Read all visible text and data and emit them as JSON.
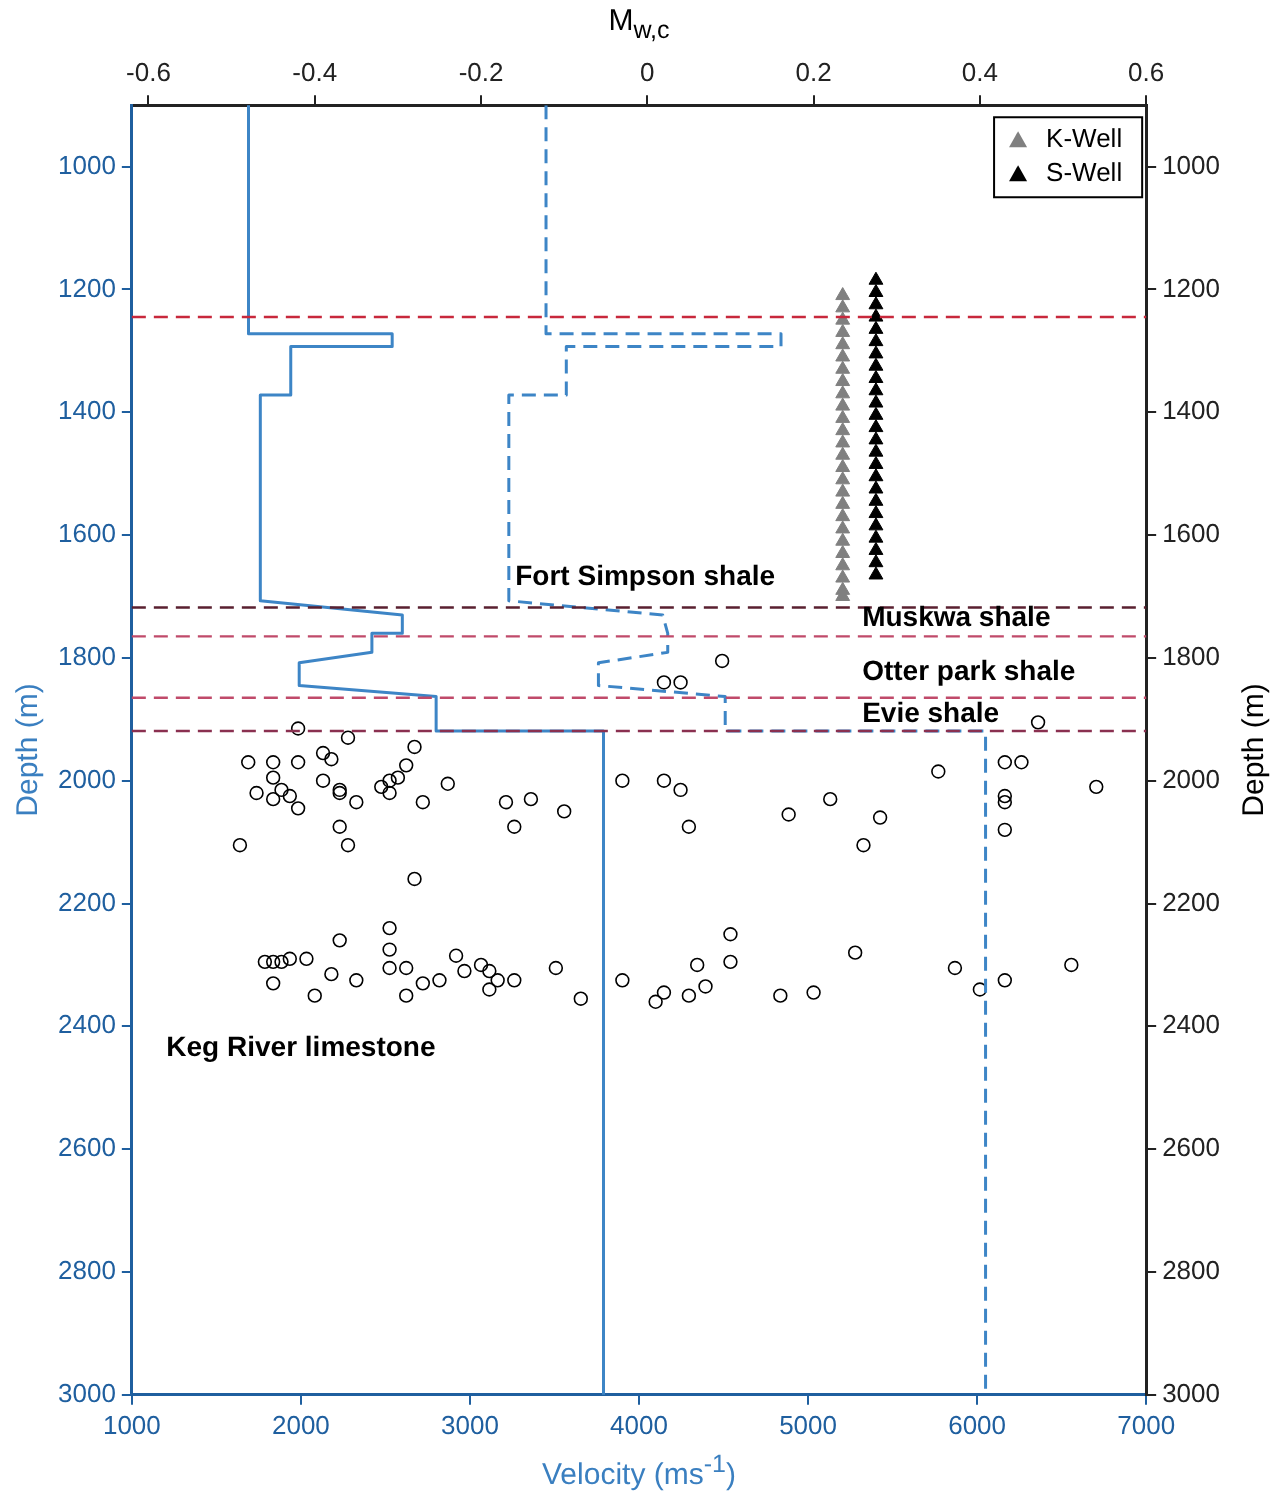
{
  "chart_data": {
    "type": "line",
    "xlabel": "Velocity (ms$^{-1}$)",
    "ylabel": "Depth (m)",
    "y2label": "Depth (m)",
    "x2label": "M$_{w,c}$",
    "xlim": [
      1000,
      7000
    ],
    "xticks": [
      1000,
      2000,
      3000,
      4000,
      5000,
      6000,
      7000
    ],
    "x2lim": [
      -0.62,
      0.6
    ],
    "x2ticks": [
      -0.6,
      -0.4,
      -0.2,
      0,
      0.2,
      0.4,
      0.6
    ],
    "ylim": [
      3000,
      900
    ],
    "yticks": [
      1000,
      1200,
      1400,
      1600,
      1800,
      2000,
      2200,
      2400,
      2600,
      2800,
      3000
    ],
    "y2lim": [
      3000,
      900
    ],
    "y2ticks": [
      1000,
      1200,
      1400,
      1600,
      1800,
      2000,
      2200,
      2400,
      2600,
      2800,
      3000
    ],
    "legend": "top right",
    "series": [
      {
        "type": "line",
        "color": "#3d85c6",
        "line_style": "solid",
        "marker": "none",
        "x": [
          1690,
          1690,
          2540,
          2540,
          1940,
          1940,
          1760,
          1760,
          2600,
          2600,
          2420,
          2420,
          1990,
          1990,
          2800,
          2800,
          3790,
          3790
        ],
        "values": [
          900,
          1272,
          1272,
          1293,
          1293,
          1372,
          1372,
          1707,
          1730,
          1760,
          1760,
          1791,
          1808,
          1845,
          1863,
          1919,
          1919,
          3000
        ]
      },
      {
        "type": "line",
        "color": "#3d85c6",
        "line_style": "dashed",
        "marker": "none",
        "x": [
          3450,
          3450,
          4840,
          4840,
          3570,
          3570,
          3230,
          3230,
          4140,
          4170,
          4170,
          3760,
          3760,
          4510,
          4510,
          6050,
          6050
        ],
        "values": [
          900,
          1272,
          1272,
          1293,
          1293,
          1372,
          1372,
          1707,
          1730,
          1760,
          1791,
          1808,
          1845,
          1863,
          1919,
          1919,
          3000
        ]
      },
      {
        "type": "scatter",
        "axis": "x2",
        "color": "#000000",
        "marker": "circle",
        "x": [
          0.09,
          0.02,
          0.04,
          0.47,
          -0.42,
          -0.36,
          -0.48,
          -0.45,
          -0.42,
          -0.39,
          -0.38,
          -0.28,
          -0.29,
          -0.45,
          -0.39,
          -0.3,
          -0.31,
          0.35,
          0.43,
          0.45,
          -0.03,
          0.02,
          0.04,
          -0.24,
          -0.47,
          -0.45,
          -0.44,
          -0.43,
          -0.42,
          -0.37,
          -0.37,
          -0.35,
          -0.32,
          -0.31,
          -0.27,
          -0.17,
          -0.14,
          -0.1,
          0.22,
          0.17,
          0.28,
          0.43,
          0.43,
          0.54,
          -0.37,
          -0.16,
          0.05,
          0.43,
          -0.49,
          -0.36,
          0.26,
          -0.28,
          -0.31,
          -0.37,
          0.1,
          -0.31,
          -0.46,
          -0.45,
          -0.44,
          -0.43,
          -0.41,
          -0.45,
          -0.38,
          -0.35,
          -0.4,
          -0.31,
          -0.29,
          -0.29,
          -0.27,
          -0.25,
          -0.23,
          -0.22,
          -0.2,
          -0.19,
          -0.19,
          -0.18,
          -0.16,
          -0.11,
          -0.08,
          -0.03,
          0.01,
          0.02,
          0.05,
          0.06,
          0.07,
          0.1,
          0.25,
          0.16,
          0.2,
          0.37,
          0.4,
          0.43,
          0.51
        ],
        "values": [
          1805,
          1840,
          1840,
          1905,
          1915,
          1930,
          1970,
          1970,
          1970,
          1955,
          1965,
          1945,
          1975,
          1995,
          2000,
          1995,
          2000,
          1985,
          1970,
          1970,
          2000,
          2000,
          2015,
          2005,
          2020,
          2030,
          2015,
          2025,
          2045,
          2015,
          2020,
          2035,
          2010,
          2020,
          2035,
          2035,
          2030,
          2050,
          2030,
          2055,
          2060,
          2025,
          2035,
          2010,
          2075,
          2075,
          2075,
          2080,
          2105,
          2105,
          2105,
          2160,
          2240,
          2260,
          2250,
          2275,
          2295,
          2295,
          2295,
          2290,
          2290,
          2330,
          2315,
          2325,
          2350,
          2305,
          2305,
          2350,
          2330,
          2325,
          2285,
          2310,
          2300,
          2310,
          2340,
          2325,
          2325,
          2305,
          2355,
          2325,
          2360,
          2345,
          2350,
          2300,
          2335,
          2295,
          2280,
          2350,
          2345,
          2305,
          2340,
          2325,
          2300
        ]
      },
      {
        "type": "scatter",
        "name": "K-Well",
        "axis": "x2",
        "color": "#808080",
        "marker": "triangle",
        "x": [
          0.235,
          0.235,
          0.235,
          0.235,
          0.235,
          0.235,
          0.235,
          0.235,
          0.235,
          0.235,
          0.235,
          0.235,
          0.235,
          0.235,
          0.235,
          0.235,
          0.235,
          0.235,
          0.235,
          0.235,
          0.235,
          0.235,
          0.235,
          0.235,
          0.235,
          0.235
        ],
        "values": [
          1210,
          1230,
          1250,
          1270,
          1290,
          1310,
          1330,
          1350,
          1370,
          1390,
          1410,
          1430,
          1450,
          1470,
          1490,
          1510,
          1530,
          1550,
          1570,
          1590,
          1610,
          1630,
          1650,
          1670,
          1690,
          1700
        ]
      },
      {
        "type": "scatter",
        "name": "S-Well",
        "axis": "x2",
        "color": "#000000",
        "marker": "triangle",
        "x": [
          0.275,
          0.275,
          0.275,
          0.275,
          0.275,
          0.275,
          0.275,
          0.275,
          0.275,
          0.275,
          0.275,
          0.275,
          0.275,
          0.275,
          0.275,
          0.275,
          0.275,
          0.275,
          0.275,
          0.275,
          0.275,
          0.275,
          0.275,
          0.275,
          0.275
        ],
        "values": [
          1185,
          1205,
          1225,
          1245,
          1265,
          1285,
          1305,
          1325,
          1345,
          1365,
          1385,
          1405,
          1425,
          1445,
          1465,
          1485,
          1505,
          1525,
          1545,
          1565,
          1585,
          1605,
          1625,
          1645,
          1665
        ]
      }
    ],
    "ref_lines": [
      {
        "axis": "y",
        "value": 1245,
        "color": "#c8283c",
        "line_style": "dashed"
      },
      {
        "axis": "y",
        "value": 1718,
        "color": "#5a2030",
        "line_style": "dashed"
      },
      {
        "axis": "y",
        "value": 1765,
        "color": "#c04a6a",
        "line_style": "dashed"
      },
      {
        "axis": "y",
        "value": 1865,
        "color": "#c04a6a",
        "line_style": "dashed"
      },
      {
        "axis": "y",
        "value": 1919,
        "color": "#8a3050",
        "line_style": "dashed"
      }
    ],
    "annotations": [
      "Fort Simpson shale",
      "Muskwa shale",
      "Otter park shale",
      "Evie shale",
      "Keg River limestone"
    ]
  }
}
